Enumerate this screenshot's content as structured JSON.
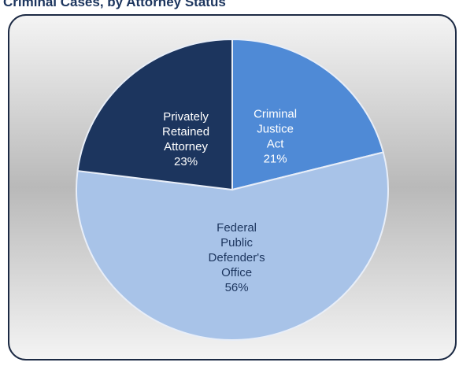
{
  "chart_data": {
    "type": "pie",
    "title": "Criminal Cases, by Attorney Status",
    "categories": [
      "Criminal Justice Act",
      "Federal Public Defender's Office",
      "Privately Retained Attorney"
    ],
    "values": [
      21,
      56,
      23
    ],
    "value_labels": [
      "21%",
      "56%",
      "23%"
    ],
    "colors": [
      "#4f8ad6",
      "#a8c3e8",
      "#1c355e"
    ]
  }
}
